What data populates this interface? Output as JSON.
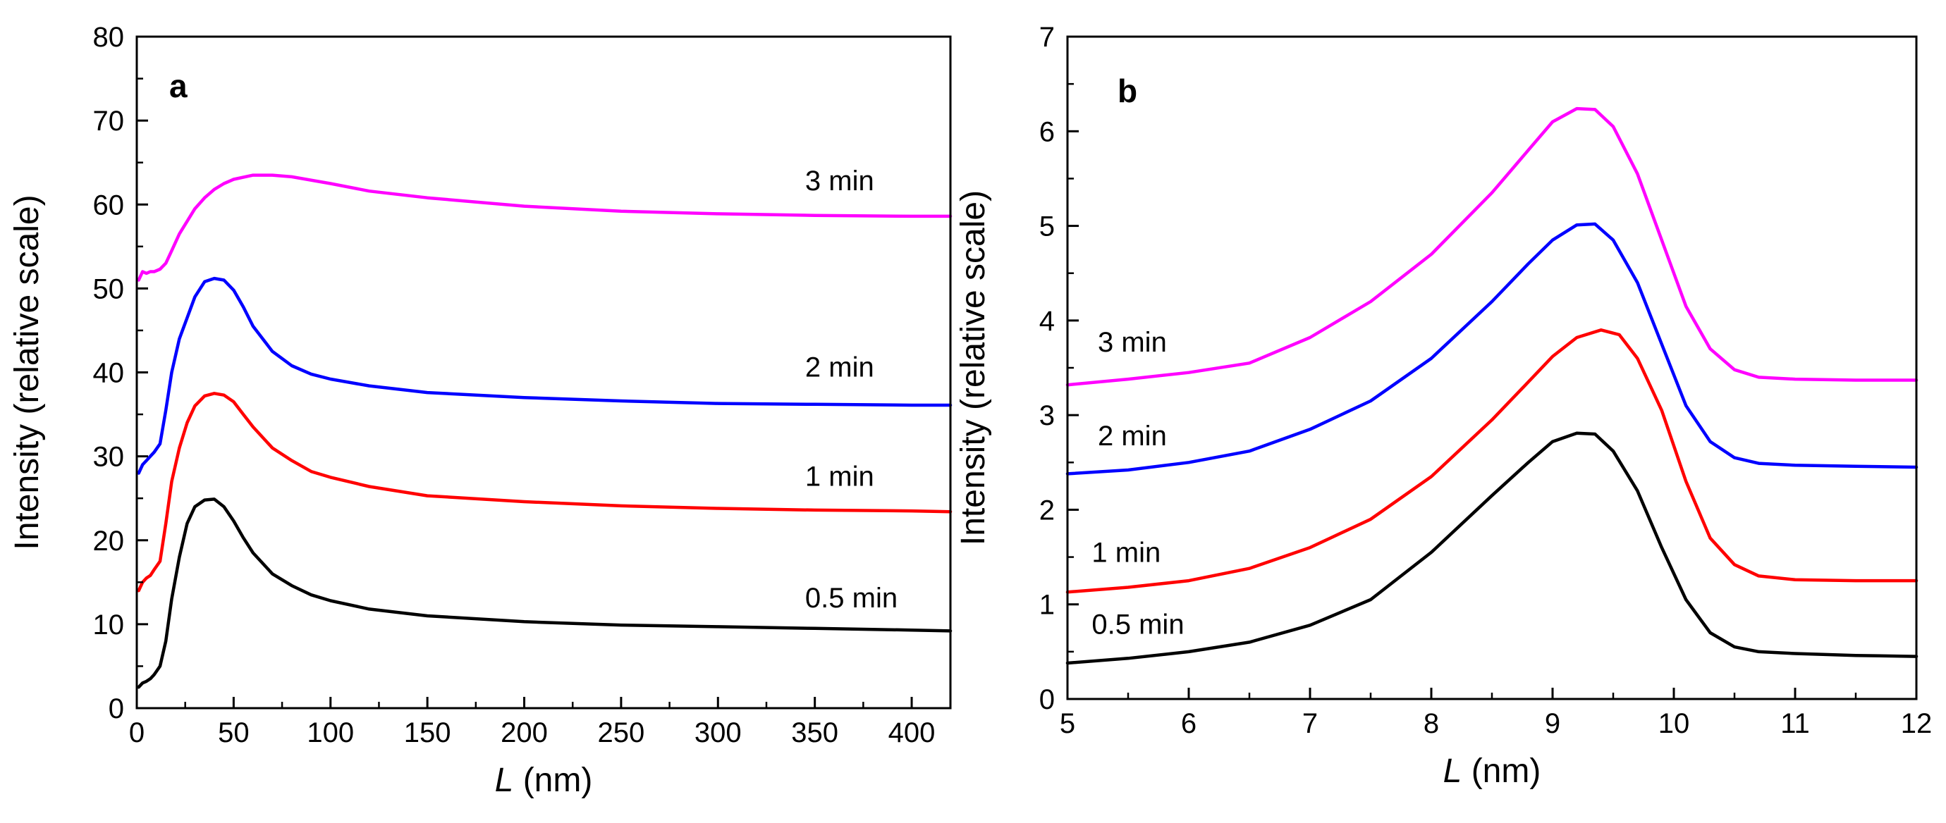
{
  "chart_data": [
    {
      "panel": "a",
      "type": "line",
      "xlabel_var": "L",
      "xlabel_unit": " (nm)",
      "ylabel": "Intensity (relative scale)",
      "xlim": [
        0,
        420
      ],
      "ylim": [
        0,
        80
      ],
      "xticks": [
        0,
        50,
        100,
        150,
        200,
        250,
        300,
        350,
        400
      ],
      "yticks": [
        0,
        10,
        20,
        30,
        40,
        50,
        60,
        70,
        80
      ],
      "series": [
        {
          "name": "0.5 min",
          "color": "#000000",
          "x": [
            1,
            3,
            5,
            7,
            9,
            12,
            15,
            18,
            22,
            26,
            30,
            35,
            40,
            45,
            50,
            55,
            60,
            70,
            80,
            90,
            100,
            120,
            150,
            200,
            250,
            300,
            350,
            400,
            420
          ],
          "y": [
            2.5,
            3,
            3.2,
            3.5,
            4,
            5,
            8,
            13,
            18,
            22,
            24,
            24.8,
            24.9,
            24,
            22.3,
            20.3,
            18.5,
            16,
            14.6,
            13.5,
            12.8,
            11.8,
            11,
            10.3,
            9.9,
            9.7,
            9.5,
            9.3,
            9.2
          ]
        },
        {
          "name": "1 min",
          "color": "#ff0000",
          "x": [
            1,
            3,
            5,
            7,
            9,
            12,
            15,
            18,
            22,
            26,
            30,
            35,
            40,
            45,
            50,
            55,
            60,
            70,
            80,
            90,
            100,
            120,
            150,
            200,
            250,
            300,
            350,
            400,
            420
          ],
          "y": [
            14,
            15,
            15.5,
            15.8,
            16.5,
            17.5,
            22,
            27,
            31,
            34,
            36,
            37.2,
            37.5,
            37.3,
            36.5,
            35,
            33.5,
            31,
            29.5,
            28.2,
            27.5,
            26.4,
            25.3,
            24.6,
            24.1,
            23.8,
            23.6,
            23.5,
            23.4
          ]
        },
        {
          "name": "2 min",
          "color": "#0000ff",
          "x": [
            1,
            3,
            5,
            7,
            9,
            12,
            15,
            18,
            22,
            26,
            30,
            35,
            40,
            45,
            50,
            55,
            60,
            70,
            80,
            90,
            100,
            120,
            150,
            200,
            250,
            300,
            350,
            400,
            420
          ],
          "y": [
            28,
            29,
            29.5,
            30,
            30.5,
            31.5,
            35.5,
            40,
            44,
            46.5,
            49,
            50.8,
            51.2,
            51,
            49.8,
            47.8,
            45.5,
            42.5,
            40.8,
            39.8,
            39.2,
            38.4,
            37.6,
            37,
            36.6,
            36.3,
            36.2,
            36.1,
            36.1
          ]
        },
        {
          "name": "3 min",
          "color": "#ff00ff",
          "x": [
            1,
            3,
            5,
            7,
            9,
            12,
            15,
            18,
            22,
            26,
            30,
            35,
            40,
            45,
            50,
            60,
            70,
            80,
            100,
            120,
            150,
            200,
            250,
            300,
            350,
            400,
            420
          ],
          "y": [
            51,
            52,
            51.8,
            52,
            52,
            52.3,
            53,
            54.5,
            56.5,
            58,
            59.5,
            60.8,
            61.8,
            62.5,
            63,
            63.5,
            63.5,
            63.3,
            62.5,
            61.6,
            60.8,
            59.8,
            59.2,
            58.9,
            58.7,
            58.6,
            58.6
          ]
        }
      ],
      "annotations": [
        {
          "text": "3 min",
          "x": 345,
          "y": 61.7
        },
        {
          "text": "2 min",
          "x": 345,
          "y": 39.5
        },
        {
          "text": "1 min",
          "x": 345,
          "y": 26.5
        },
        {
          "text": "0.5 min",
          "x": 345,
          "y": 12
        }
      ]
    },
    {
      "panel": "b",
      "type": "line",
      "xlabel_var": "L",
      "xlabel_unit": " (nm)",
      "ylabel": "Intensity (relative scale)",
      "xlim": [
        5,
        12
      ],
      "ylim": [
        0,
        7
      ],
      "xticks": [
        5,
        6,
        7,
        8,
        9,
        10,
        11,
        12
      ],
      "yticks": [
        0,
        1,
        2,
        3,
        4,
        5,
        6,
        7
      ],
      "series": [
        {
          "name": "0.5 min",
          "color": "#000000",
          "x": [
            5,
            5.5,
            6,
            6.5,
            7,
            7.5,
            8,
            8.5,
            8.8,
            9,
            9.2,
            9.35,
            9.5,
            9.7,
            9.9,
            10.1,
            10.3,
            10.5,
            10.7,
            11,
            11.5,
            12
          ],
          "y": [
            0.38,
            0.43,
            0.5,
            0.6,
            0.78,
            1.05,
            1.55,
            2.15,
            2.5,
            2.72,
            2.81,
            2.8,
            2.62,
            2.2,
            1.6,
            1.05,
            0.7,
            0.55,
            0.5,
            0.48,
            0.46,
            0.45
          ]
        },
        {
          "name": "1 min",
          "color": "#ff0000",
          "x": [
            5,
            5.5,
            6,
            6.5,
            7,
            7.5,
            8,
            8.5,
            8.8,
            9,
            9.2,
            9.4,
            9.55,
            9.7,
            9.9,
            10.1,
            10.3,
            10.5,
            10.7,
            11,
            11.5,
            12
          ],
          "y": [
            1.13,
            1.18,
            1.25,
            1.38,
            1.6,
            1.9,
            2.35,
            2.95,
            3.35,
            3.62,
            3.82,
            3.9,
            3.85,
            3.6,
            3.05,
            2.3,
            1.7,
            1.42,
            1.3,
            1.26,
            1.25,
            1.25
          ]
        },
        {
          "name": "2 min",
          "color": "#0000ff",
          "x": [
            5,
            5.5,
            6,
            6.5,
            7,
            7.5,
            8,
            8.5,
            8.8,
            9,
            9.2,
            9.35,
            9.5,
            9.7,
            9.9,
            10.1,
            10.3,
            10.5,
            10.7,
            11,
            11.5,
            12
          ],
          "y": [
            2.38,
            2.42,
            2.5,
            2.62,
            2.85,
            3.15,
            3.6,
            4.2,
            4.6,
            4.85,
            5.01,
            5.02,
            4.85,
            4.4,
            3.75,
            3.1,
            2.72,
            2.55,
            2.49,
            2.47,
            2.46,
            2.45
          ]
        },
        {
          "name": "3 min",
          "color": "#ff00ff",
          "x": [
            5,
            5.5,
            6,
            6.5,
            7,
            7.5,
            8,
            8.5,
            8.8,
            9,
            9.2,
            9.35,
            9.5,
            9.7,
            9.9,
            10.1,
            10.3,
            10.5,
            10.7,
            11,
            11.5,
            12
          ],
          "y": [
            3.32,
            3.38,
            3.45,
            3.55,
            3.82,
            4.2,
            4.7,
            5.35,
            5.8,
            6.1,
            6.24,
            6.23,
            6.05,
            5.55,
            4.85,
            4.15,
            3.7,
            3.48,
            3.4,
            3.38,
            3.37,
            3.37
          ]
        }
      ],
      "annotations": [
        {
          "text": "3 min",
          "x": 5.25,
          "y": 3.67
        },
        {
          "text": "2 min",
          "x": 5.25,
          "y": 2.68
        },
        {
          "text": "1 min",
          "x": 5.2,
          "y": 1.45
        },
        {
          "text": "0.5 min",
          "x": 5.2,
          "y": 0.69
        }
      ]
    }
  ]
}
